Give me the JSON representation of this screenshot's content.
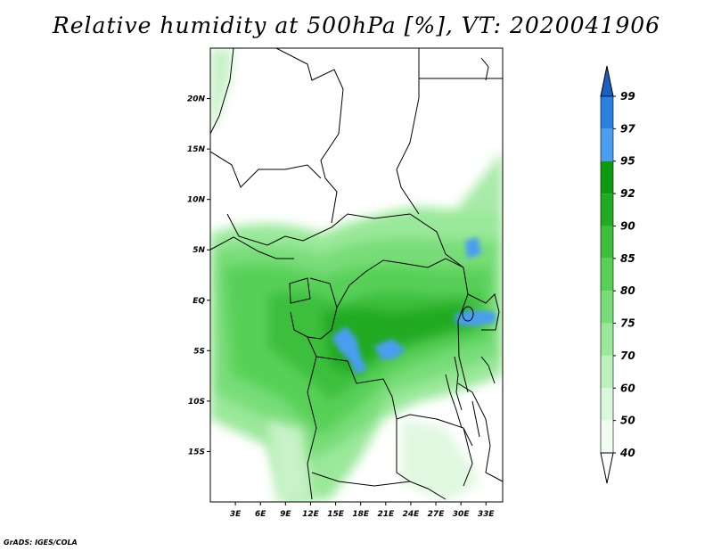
{
  "title": "Relative humidity at 500hPa [%], VT: 2020041906",
  "credit": "GrADS: IGES/COLA",
  "map": {
    "lon_range": [
      0,
      35
    ],
    "lat_range": [
      -20,
      25
    ],
    "lat_ticks": [
      {
        "value": 20,
        "label": "20N"
      },
      {
        "value": 15,
        "label": "15N"
      },
      {
        "value": 10,
        "label": "10N"
      },
      {
        "value": 5,
        "label": "5N"
      },
      {
        "value": 0,
        "label": "EQ"
      },
      {
        "value": -5,
        "label": "5S"
      },
      {
        "value": -10,
        "label": "10S"
      },
      {
        "value": -15,
        "label": "15S"
      }
    ],
    "lon_ticks": [
      {
        "value": 3,
        "label": "3E"
      },
      {
        "value": 6,
        "label": "6E"
      },
      {
        "value": 9,
        "label": "9E"
      },
      {
        "value": 12,
        "label": "12E"
      },
      {
        "value": 15,
        "label": "15E"
      },
      {
        "value": 18,
        "label": "18E"
      },
      {
        "value": 21,
        "label": "21E"
      },
      {
        "value": 24,
        "label": "24E"
      },
      {
        "value": 27,
        "label": "27E"
      },
      {
        "value": 30,
        "label": "30E"
      },
      {
        "value": 33,
        "label": "33E"
      }
    ]
  },
  "colorbar": {
    "levels": [
      {
        "label": "99",
        "color": "#1e6ed0"
      },
      {
        "label": "97",
        "color": "#2a80e0"
      },
      {
        "label": "95",
        "color": "#4a9ef0"
      },
      {
        "label": "92",
        "color": "#0e9a10"
      },
      {
        "label": "90",
        "color": "#22aa22"
      },
      {
        "label": "85",
        "color": "#3cbf3c"
      },
      {
        "label": "80",
        "color": "#58d058"
      },
      {
        "label": "75",
        "color": "#78dd78"
      },
      {
        "label": "70",
        "color": "#9ae89a"
      },
      {
        "label": "60",
        "color": "#bdf1bd"
      },
      {
        "label": "50",
        "color": "#dcf8dc"
      },
      {
        "label": "40",
        "color": "#f0fcf0"
      }
    ],
    "top_color": "#1a5fc0",
    "bottom_color": "#ffffff"
  }
}
